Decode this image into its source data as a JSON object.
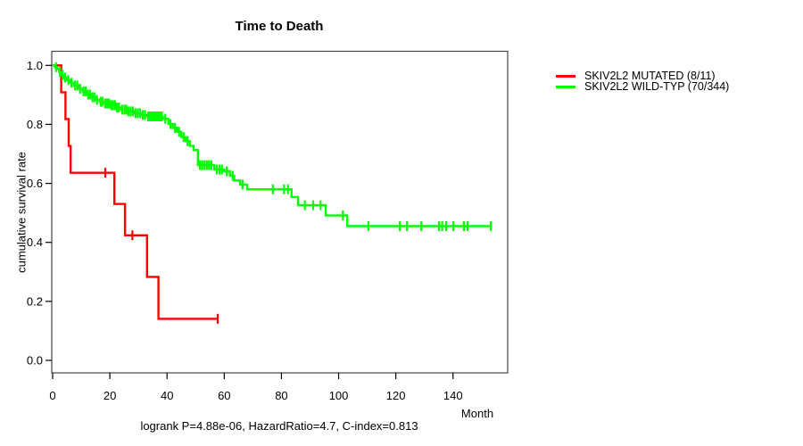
{
  "title": "Time to Death",
  "footer": "logrank P=4.88e-06, HazardRatio=4.7, C-index=0.813",
  "axes": {
    "x": {
      "label": "Month",
      "tick_labels": [
        "0",
        "20",
        "40",
        "60",
        "80",
        "100",
        "120",
        "140"
      ],
      "tick_values": [
        0,
        20,
        40,
        60,
        80,
        100,
        120,
        140
      ]
    },
    "y": {
      "label": "cumulative survival rate",
      "tick_labels": [
        "0.0",
        "0.2",
        "0.4",
        "0.6",
        "0.8",
        "1.0"
      ],
      "tick_values": [
        0.0,
        0.2,
        0.4,
        0.6,
        0.8,
        1.0
      ]
    }
  },
  "legend": [
    {
      "label": "SKIV2L2 MUTATED (8/11)",
      "color": "#ff0000"
    },
    {
      "label": "SKIV2L2 WILD-TYP (70/344)",
      "color": "#00ff00"
    }
  ],
  "chart_data": {
    "type": "line",
    "subtype": "kaplan-meier-step",
    "title": "Time to Death",
    "xlabel": "Month",
    "ylabel": "cumulative survival rate",
    "xlim": [
      0,
      155
    ],
    "ylim": [
      0,
      1.0
    ],
    "grid": false,
    "legend_position": "right-outside",
    "annotation": "logrank P=4.88e-06, HazardRatio=4.7, C-index=0.813",
    "series": [
      {
        "name": "SKIV2L2 MUTATED (8/11)",
        "color": "#ff0000",
        "events": "8/11",
        "step_points": [
          [
            0,
            1.0
          ],
          [
            3.0,
            0.909
          ],
          [
            4.5,
            0.818
          ],
          [
            5.6,
            0.727
          ],
          [
            6.3,
            0.636
          ],
          [
            21.6,
            0.53
          ],
          [
            25.3,
            0.424
          ],
          [
            33.0,
            0.283
          ],
          [
            37.0,
            0.141
          ],
          [
            57.7,
            0.141
          ]
        ],
        "censor_marks": [
          [
            18.4,
            0.636
          ],
          [
            27.9,
            0.424
          ],
          [
            57.7,
            0.141
          ]
        ]
      },
      {
        "name": "SKIV2L2 WILD-TYP (70/344)",
        "color": "#00ff00",
        "events": "70/344",
        "step_points": [
          [
            0,
            1.0
          ],
          [
            0.8,
            0.994
          ],
          [
            1.6,
            0.988
          ],
          [
            2.3,
            0.977
          ],
          [
            3.1,
            0.968
          ],
          [
            4.0,
            0.959
          ],
          [
            5.0,
            0.95
          ],
          [
            6.2,
            0.941
          ],
          [
            7.5,
            0.932
          ],
          [
            9.0,
            0.921
          ],
          [
            10.5,
            0.912
          ],
          [
            12.0,
            0.901
          ],
          [
            13.5,
            0.892
          ],
          [
            15.0,
            0.883
          ],
          [
            16.5,
            0.877
          ],
          [
            18.0,
            0.871
          ],
          [
            20.0,
            0.865
          ],
          [
            22.0,
            0.857
          ],
          [
            24.0,
            0.85
          ],
          [
            26.0,
            0.844
          ],
          [
            28.5,
            0.838
          ],
          [
            31.0,
            0.832
          ],
          [
            33.0,
            0.827
          ],
          [
            38.5,
            0.819
          ],
          [
            40.5,
            0.801
          ],
          [
            42.0,
            0.788
          ],
          [
            43.5,
            0.775
          ],
          [
            45.0,
            0.757
          ],
          [
            46.5,
            0.743
          ],
          [
            48.0,
            0.727
          ],
          [
            49.3,
            0.713
          ],
          [
            50.8,
            0.662
          ],
          [
            56.5,
            0.647
          ],
          [
            60.0,
            0.641
          ],
          [
            62.0,
            0.626
          ],
          [
            63.5,
            0.61
          ],
          [
            65.5,
            0.596
          ],
          [
            68.0,
            0.58
          ],
          [
            83.5,
            0.554
          ],
          [
            85.8,
            0.526
          ],
          [
            95.5,
            0.491
          ],
          [
            103.0,
            0.455
          ],
          [
            153.5,
            0.455
          ]
        ],
        "censor_marks": [
          [
            1.2,
            0.994
          ],
          [
            2.6,
            0.977
          ],
          [
            3.5,
            0.968
          ],
          [
            4.4,
            0.959
          ],
          [
            5.5,
            0.95
          ],
          [
            6.6,
            0.941
          ],
          [
            7.8,
            0.932
          ],
          [
            8.6,
            0.932
          ],
          [
            9.6,
            0.921
          ],
          [
            10.8,
            0.912
          ],
          [
            11.5,
            0.912
          ],
          [
            12.4,
            0.901
          ],
          [
            13.1,
            0.901
          ],
          [
            13.9,
            0.892
          ],
          [
            14.6,
            0.892
          ],
          [
            15.5,
            0.883
          ],
          [
            16.8,
            0.877
          ],
          [
            17.4,
            0.877
          ],
          [
            18.4,
            0.871
          ],
          [
            19.1,
            0.871
          ],
          [
            19.7,
            0.871
          ],
          [
            20.4,
            0.865
          ],
          [
            21.1,
            0.865
          ],
          [
            21.8,
            0.865
          ],
          [
            22.5,
            0.857
          ],
          [
            23.2,
            0.857
          ],
          [
            24.3,
            0.85
          ],
          [
            25.1,
            0.85
          ],
          [
            25.8,
            0.85
          ],
          [
            26.5,
            0.844
          ],
          [
            27.3,
            0.844
          ],
          [
            28.1,
            0.844
          ],
          [
            29.0,
            0.838
          ],
          [
            29.8,
            0.838
          ],
          [
            30.6,
            0.838
          ],
          [
            31.5,
            0.832
          ],
          [
            32.3,
            0.832
          ],
          [
            33.4,
            0.827
          ],
          [
            34.0,
            0.827
          ],
          [
            34.6,
            0.827
          ],
          [
            35.2,
            0.827
          ],
          [
            35.8,
            0.827
          ],
          [
            36.4,
            0.827
          ],
          [
            37.0,
            0.827
          ],
          [
            37.6,
            0.827
          ],
          [
            38.2,
            0.827
          ],
          [
            39.4,
            0.819
          ],
          [
            41.2,
            0.801
          ],
          [
            42.8,
            0.788
          ],
          [
            44.2,
            0.775
          ],
          [
            45.8,
            0.757
          ],
          [
            47.2,
            0.743
          ],
          [
            51.5,
            0.662
          ],
          [
            52.3,
            0.662
          ],
          [
            53.1,
            0.662
          ],
          [
            53.9,
            0.662
          ],
          [
            54.7,
            0.662
          ],
          [
            55.5,
            0.662
          ],
          [
            57.4,
            0.647
          ],
          [
            58.3,
            0.647
          ],
          [
            59.2,
            0.647
          ],
          [
            60.9,
            0.641
          ],
          [
            63.0,
            0.626
          ],
          [
            66.4,
            0.596
          ],
          [
            77.0,
            0.58
          ],
          [
            80.9,
            0.58
          ],
          [
            82.3,
            0.58
          ],
          [
            88.2,
            0.526
          ],
          [
            91.1,
            0.526
          ],
          [
            93.7,
            0.526
          ],
          [
            101.5,
            0.491
          ],
          [
            110.4,
            0.455
          ],
          [
            121.4,
            0.455
          ],
          [
            123.9,
            0.455
          ],
          [
            128.9,
            0.455
          ],
          [
            135.1,
            0.455
          ],
          [
            136.2,
            0.455
          ],
          [
            137.6,
            0.455
          ],
          [
            140.1,
            0.455
          ],
          [
            143.8,
            0.455
          ],
          [
            145.1,
            0.455
          ],
          [
            153.2,
            0.455
          ]
        ]
      }
    ]
  },
  "styles": {
    "box_color": "#444444",
    "tick_color": "#000000",
    "background": "#ffffff"
  }
}
